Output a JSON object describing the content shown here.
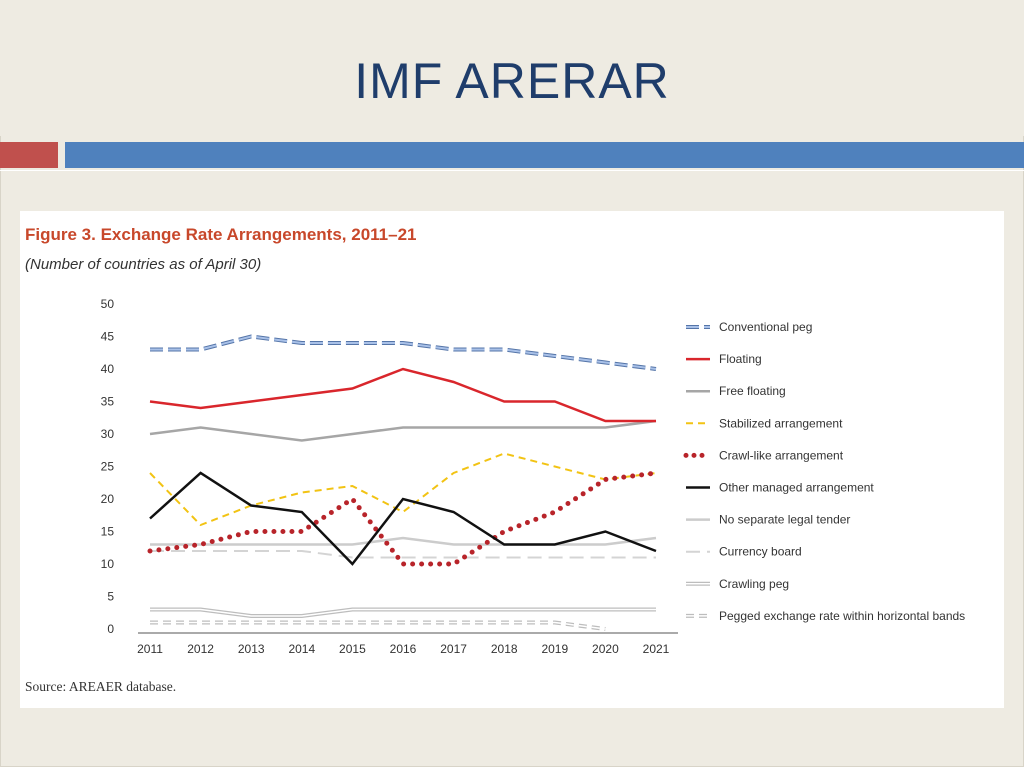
{
  "slide": {
    "title": "IMF ARERAR"
  },
  "figure": {
    "title": "Figure 3. Exchange Rate Arrangements, 2011–21",
    "subtitle": "(Number of countries as of April 30)",
    "source": "Source: AREAER database."
  },
  "chart_data": {
    "type": "line",
    "title": "Figure 3. Exchange Rate Arrangements, 2011–21",
    "subtitle": "(Number of countries as of April 30)",
    "xlabel": "",
    "ylabel": "",
    "categories": [
      "2011",
      "2012",
      "2013",
      "2014",
      "2015",
      "2016",
      "2017",
      "2018",
      "2019",
      "2020",
      "2021"
    ],
    "ylim": [
      0,
      50
    ],
    "yticks": [
      0,
      5,
      10,
      15,
      20,
      25,
      30,
      35,
      40,
      45,
      50
    ],
    "grid": false,
    "legend_position": "right",
    "series": [
      {
        "name": "Conventional peg",
        "color": "#7f9fd0",
        "style": "conv-peg",
        "values": [
          43,
          43,
          45,
          44,
          44,
          44,
          43,
          43,
          42,
          41,
          40
        ]
      },
      {
        "name": "Floating",
        "color": "#d9262c",
        "style": "solid",
        "values": [
          35,
          34,
          35,
          36,
          37,
          40,
          38,
          35,
          35,
          32,
          32
        ]
      },
      {
        "name": "Free floating",
        "color": "#a6a6a6",
        "style": "solid",
        "values": [
          30,
          31,
          30,
          29,
          30,
          31,
          31,
          31,
          31,
          31,
          32
        ]
      },
      {
        "name": "Stabilized arrangement",
        "color": "#f2c313",
        "style": "dashed",
        "values": [
          24,
          16,
          19,
          21,
          22,
          18,
          24,
          27,
          25,
          23,
          24
        ]
      },
      {
        "name": "Crawl-like arrangement",
        "color": "#b8242a",
        "style": "dotted",
        "values": [
          12,
          13,
          15,
          15,
          20,
          10,
          10,
          15,
          18,
          23,
          24
        ]
      },
      {
        "name": "Other managed arrangement",
        "color": "#111111",
        "style": "solid",
        "values": [
          17,
          24,
          19,
          18,
          10,
          20,
          18,
          13,
          13,
          15,
          12
        ]
      },
      {
        "name": "No separate legal tender",
        "color": "#cccccc",
        "style": "solid",
        "values": [
          13,
          13,
          13,
          13,
          13,
          14,
          13,
          13,
          13,
          13,
          14
        ]
      },
      {
        "name": "Currency board",
        "color": "#d4d4d4",
        "style": "long-dash",
        "values": [
          12,
          12,
          12,
          12,
          11,
          11,
          11,
          11,
          11,
          11,
          11
        ]
      },
      {
        "name": "Crawling peg",
        "color": "#c8c8c8",
        "style": "double",
        "values": [
          3,
          3,
          2,
          2,
          3,
          3,
          3,
          3,
          3,
          3,
          3
        ]
      },
      {
        "name": "Pegged exchange rate within horizontal bands",
        "color": "#c8c8c8",
        "style": "double-dash",
        "values": [
          1,
          1,
          1,
          1,
          1,
          1,
          1,
          1,
          1,
          0,
          null
        ]
      }
    ]
  }
}
